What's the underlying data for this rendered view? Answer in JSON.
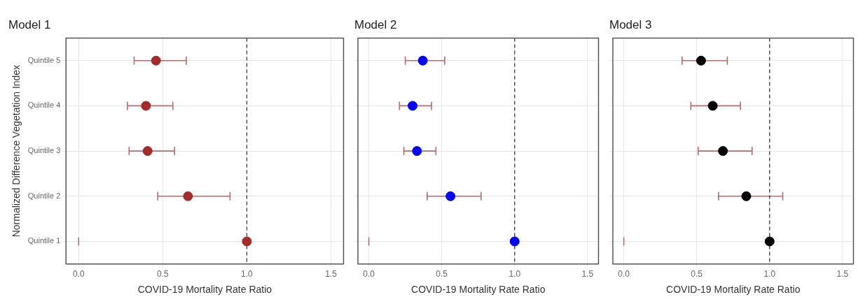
{
  "chart_data": [
    {
      "type": "scatter",
      "title": "Model 1",
      "xlabel": "COVID-19 Mortality Rate Ratio",
      "ylabel": "Normalized Difference Vegetation Index",
      "orientation": "horizontal",
      "categories": [
        "Quintile 5",
        "Quintile 4",
        "Quintile 3",
        "Quintile 2",
        "Quintile 1"
      ],
      "series": [
        {
          "color": "#a52a2a",
          "values": [
            0.46,
            0.4,
            0.41,
            0.65,
            1
          ],
          "errors": [
            [
              0.33,
              0.64
            ],
            [
              0.29,
              0.56
            ],
            [
              0.3,
              0.57
            ],
            [
              0.47,
              0.9
            ],
            [
              0,
              0
            ]
          ]
        }
      ],
      "xlim": [
        -0.075,
        1.575
      ],
      "xticks": [
        {
          "value": 0,
          "label": "0.0"
        },
        {
          "value": 0.5,
          "label": "0.5"
        },
        {
          "value": 1,
          "label": "1.0"
        },
        {
          "value": 1.5,
          "label": "1.5"
        }
      ],
      "ref_lines": [
        {
          "axis": "x",
          "value": 1,
          "color": "#444444",
          "line_style": "dashed"
        }
      ],
      "grid": true,
      "marker": "circle"
    },
    {
      "type": "scatter",
      "title": "Model 2",
      "xlabel": "COVID-19 Mortality Rate Ratio",
      "orientation": "horizontal",
      "tick_labels": "x",
      "categories": [
        null,
        null,
        null,
        null,
        null
      ],
      "series": [
        {
          "color": "#0000ff",
          "values": [
            0.37,
            0.3,
            0.33,
            0.56,
            1
          ],
          "errors": [
            [
              0.25,
              0.52
            ],
            [
              0.21,
              0.43
            ],
            [
              0.24,
              0.46
            ],
            [
              0.4,
              0.77
            ],
            [
              0,
              0
            ]
          ]
        }
      ],
      "xlim": [
        -0.075,
        1.575
      ],
      "xticks": [
        {
          "value": 0,
          "label": "0.0"
        },
        {
          "value": 0.5,
          "label": "0.5"
        },
        {
          "value": 1,
          "label": "1.0"
        },
        {
          "value": 1.5,
          "label": "1.5"
        }
      ],
      "ref_lines": [
        {
          "axis": "x",
          "value": 1,
          "color": "#444444",
          "line_style": "dashed"
        }
      ],
      "grid": true,
      "marker": "circle"
    },
    {
      "type": "scatter",
      "title": "Model 3",
      "xlabel": "COVID-19 Mortality Rate Ratio",
      "orientation": "horizontal",
      "tick_labels": "x",
      "categories": [
        null,
        null,
        null,
        null,
        null
      ],
      "series": [
        {
          "color": "#000000",
          "values": [
            0.53,
            0.61,
            0.68,
            0.84,
            1
          ],
          "errors": [
            [
              0.4,
              0.71
            ],
            [
              0.46,
              0.8
            ],
            [
              0.51,
              0.88
            ],
            [
              0.65,
              1.09
            ],
            [
              0,
              0
            ]
          ]
        }
      ],
      "xlim": [
        -0.075,
        1.575
      ],
      "xticks": [
        {
          "value": 0,
          "label": "0.0"
        },
        {
          "value": 0.5,
          "label": "0.5"
        },
        {
          "value": 1,
          "label": "1.0"
        },
        {
          "value": 1.5,
          "label": "1.5"
        }
      ],
      "ref_lines": [
        {
          "axis": "x",
          "value": 1,
          "color": "#444444",
          "line_style": "dashed"
        }
      ],
      "grid": true,
      "marker": "circle"
    }
  ]
}
